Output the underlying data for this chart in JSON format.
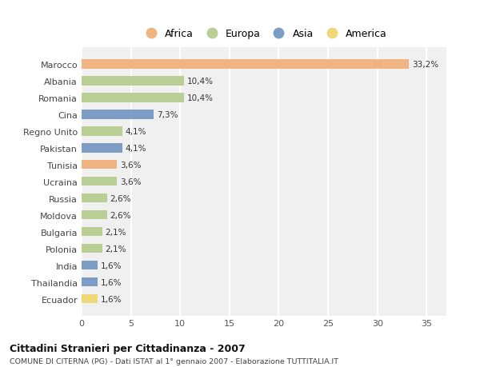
{
  "countries": [
    "Marocco",
    "Albania",
    "Romania",
    "Cina",
    "Regno Unito",
    "Pakistan",
    "Tunisia",
    "Ucraina",
    "Russia",
    "Moldova",
    "Bulgaria",
    "Polonia",
    "India",
    "Thailandia",
    "Ecuador"
  ],
  "values": [
    33.2,
    10.4,
    10.4,
    7.3,
    4.1,
    4.1,
    3.6,
    3.6,
    2.6,
    2.6,
    2.1,
    2.1,
    1.6,
    1.6,
    1.6
  ],
  "labels": [
    "33,2%",
    "10,4%",
    "10,4%",
    "7,3%",
    "4,1%",
    "4,1%",
    "3,6%",
    "3,6%",
    "2,6%",
    "2,6%",
    "2,1%",
    "2,1%",
    "1,6%",
    "1,6%",
    "1,6%"
  ],
  "continents": [
    "Africa",
    "Europa",
    "Europa",
    "Asia",
    "Europa",
    "Asia",
    "Africa",
    "Europa",
    "Europa",
    "Europa",
    "Europa",
    "Europa",
    "Asia",
    "Asia",
    "America"
  ],
  "colors": {
    "Africa": "#F0B482",
    "Europa": "#BACF96",
    "Asia": "#7E9DC4",
    "America": "#F0D87A"
  },
  "legend_order": [
    "Africa",
    "Europa",
    "Asia",
    "America"
  ],
  "title": "Cittadini Stranieri per Cittadinanza - 2007",
  "subtitle": "COMUNE DI CITERNA (PG) - Dati ISTAT al 1° gennaio 2007 - Elaborazione TUTTITALIA.IT",
  "xlim": [
    0,
    37
  ],
  "xticks": [
    0,
    5,
    10,
    15,
    20,
    25,
    30,
    35
  ],
  "background_color": "#ffffff",
  "plot_bg_color": "#f0f0f0",
  "grid_color": "#ffffff"
}
